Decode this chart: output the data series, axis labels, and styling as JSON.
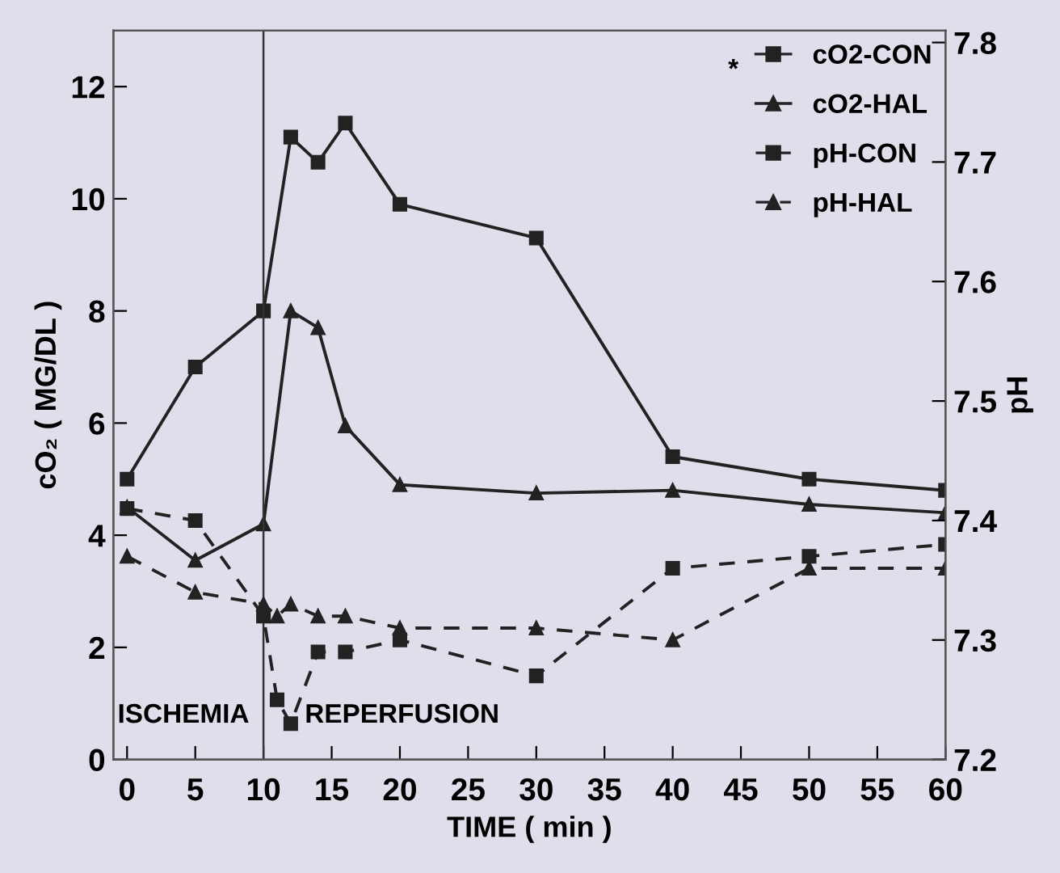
{
  "chart_data": {
    "type": "line",
    "xlabel": "TIME ( min )",
    "ylabel": "cO₂ ( MG/DL )",
    "y2label": "pH",
    "xlim": [
      -1,
      60
    ],
    "xticks": [
      0,
      5,
      10,
      15,
      20,
      25,
      30,
      35,
      40,
      45,
      50,
      55,
      60
    ],
    "ylim": [
      0,
      13
    ],
    "yticks": [
      0,
      2,
      4,
      6,
      8,
      10,
      12
    ],
    "y2lim": [
      7.2,
      7.81
    ],
    "y2ticks": [
      7.2,
      7.3,
      7.4,
      7.5,
      7.6,
      7.7,
      7.8
    ],
    "legend": "top right",
    "grid": false,
    "ref_lines": [
      {
        "axis": "x",
        "value": 10,
        "label": null,
        "color": "#333333",
        "line_style": "solid"
      }
    ],
    "annotations": [
      "*",
      "ISCHEMIA",
      "REPERFUSION"
    ],
    "series": [
      {
        "name": "cO2-CON",
        "color": "#222222",
        "marker": "square",
        "line_style": "solid",
        "x": [
          0,
          5,
          10,
          12,
          14,
          16,
          20,
          30,
          40,
          50,
          60
        ],
        "values": [
          5.0,
          7.0,
          8.0,
          11.1,
          10.65,
          11.35,
          9.9,
          9.3,
          5.4,
          5.0,
          4.8
        ]
      },
      {
        "name": "cO2-HAL",
        "color": "#222222",
        "marker": "triangle",
        "line_style": "solid",
        "x": [
          0,
          5,
          10,
          12,
          14,
          16,
          20,
          30,
          40,
          50,
          60
        ],
        "values": [
          4.5,
          3.55,
          4.2,
          8.0,
          7.7,
          5.95,
          4.9,
          4.75,
          4.8,
          4.55,
          4.4
        ]
      },
      {
        "name": "pH-CON",
        "color": "#222222",
        "marker": "square",
        "line_style": "dashed",
        "axis": "y2",
        "x": [
          0,
          5,
          10,
          11,
          12,
          14,
          16,
          20,
          30,
          40,
          50,
          60
        ],
        "values": [
          7.41,
          7.4,
          7.32,
          7.25,
          7.23,
          7.29,
          7.29,
          7.3,
          7.27,
          7.36,
          7.37,
          7.38
        ]
      },
      {
        "name": "pH-HAL",
        "color": "#222222",
        "marker": "triangle",
        "line_style": "dashed",
        "axis": "y2",
        "x": [
          0,
          5,
          10,
          11,
          12,
          14,
          16,
          20,
          30,
          40,
          50,
          60
        ],
        "values": [
          7.37,
          7.34,
          7.33,
          7.32,
          7.33,
          7.32,
          7.32,
          7.31,
          7.31,
          7.3,
          7.36,
          7.36
        ]
      }
    ]
  }
}
